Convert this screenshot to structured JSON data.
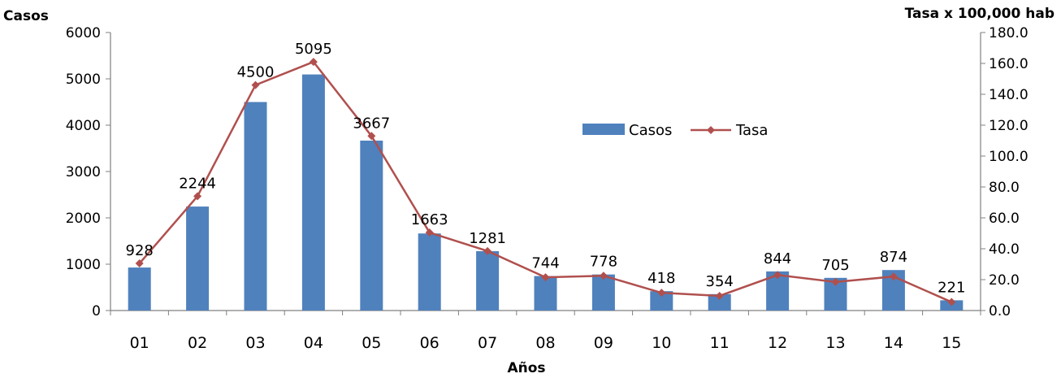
{
  "chart_data": {
    "type": "bar+line",
    "categories": [
      "01",
      "02",
      "03",
      "04",
      "05",
      "06",
      "07",
      "08",
      "09",
      "10",
      "11",
      "12",
      "13",
      "14",
      "15"
    ],
    "series": [
      {
        "name": "Casos",
        "type": "bar",
        "axis": "left",
        "values": [
          928,
          2244,
          4500,
          5095,
          3667,
          1663,
          1281,
          744,
          778,
          418,
          354,
          844,
          705,
          874,
          221
        ]
      },
      {
        "name": "Tasa",
        "type": "line",
        "axis": "right",
        "values": [
          30.5,
          74.0,
          146.0,
          161.0,
          113.0,
          50.5,
          38.5,
          21.5,
          22.5,
          11.5,
          9.5,
          23.0,
          18.5,
          22.0,
          5.5
        ]
      }
    ],
    "data_labels": [
      "928",
      "2244",
      "4500",
      "5095",
      "3667",
      "1663",
      "1281",
      "744",
      "778",
      "418",
      "354",
      "844",
      "705",
      "874",
      "221"
    ],
    "xlabel": "Años",
    "ylabel_left": "Casos",
    "ylabel_right": "Tasa x 100,000 hab",
    "ylim_left": [
      0,
      6000
    ],
    "ylim_right": [
      0,
      180
    ],
    "yticks_left": [
      "0",
      "1000",
      "2000",
      "3000",
      "4000",
      "5000",
      "6000"
    ],
    "yticks_right": [
      "0.0",
      "20.0",
      "40.0",
      "60.0",
      "80.0",
      "100.0",
      "120.0",
      "140.0",
      "160.0",
      "180.0"
    ],
    "legend": {
      "position": "center-right",
      "items": [
        "Casos",
        "Tasa"
      ]
    },
    "grid": false,
    "colors": {
      "bar": "#4f81bd",
      "line": "#b0504e",
      "axis": "#808080"
    }
  }
}
